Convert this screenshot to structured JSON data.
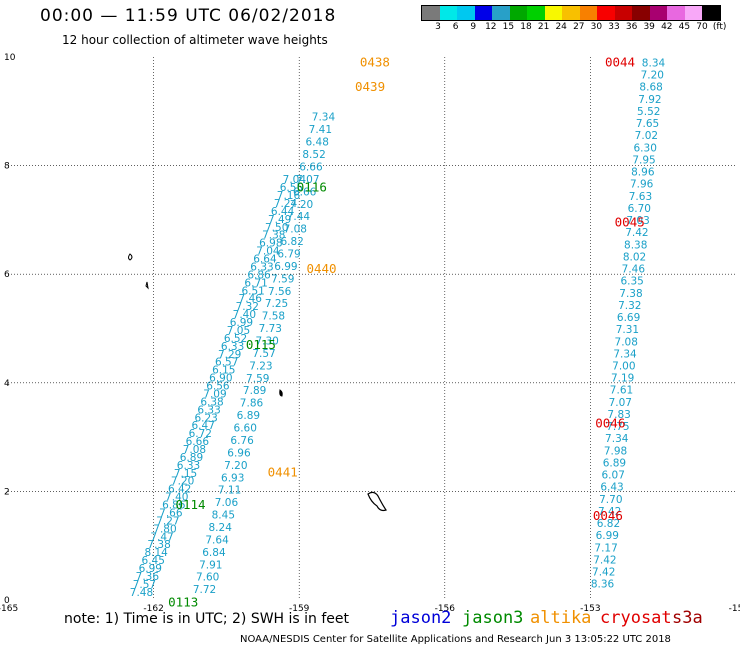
{
  "header": {
    "title": "00:00 — 11:59 UTC 06/02/2018",
    "subtitle": "12 hour collection of altimeter wave heights"
  },
  "scale": {
    "labels": [
      "3",
      "6",
      "9",
      "12",
      "15",
      "18",
      "21",
      "24",
      "27",
      "30",
      "33",
      "36",
      "39",
      "42",
      "45",
      "70",
      "(ft)"
    ],
    "colors": [
      "#7a7a7a",
      "#00e8e8",
      "#00c8f0",
      "#0000e8",
      "#28a0c8",
      "#00a800",
      "#00d000",
      "#f8f800",
      "#f8c000",
      "#f88000",
      "#f80000",
      "#c80000",
      "#880000",
      "#a80070",
      "#e868e0",
      "#f8a8f8",
      "#000000"
    ]
  },
  "axes": {
    "x_ticks": [
      "-165",
      "-162",
      "-159",
      "-156",
      "-153",
      "-15"
    ],
    "y_ticks": [
      "0",
      "2",
      "4",
      "6",
      "8",
      "10"
    ]
  },
  "chart_data": {
    "type": "scatter",
    "xlim": [
      -165,
      -150
    ],
    "ylim": [
      0,
      10
    ],
    "point_color": "#1aa0c8",
    "tracks": [
      {
        "id": "A",
        "x0": -162.25,
        "y0": 0.15,
        "x1": -159.1,
        "y1": 7.75,
        "values": [
          "7.48",
          "7.57",
          "7.36",
          "6.99",
          "6.45",
          "8.14",
          "7.38",
          "7.47",
          "7.80",
          "7.27",
          "7.66",
          "6.86",
          "7.40",
          "6.42",
          "7.20",
          "7.15",
          "6.33",
          "6.89",
          "7.08",
          "6.66",
          "6.72",
          "6.47",
          "6.23",
          "6.33",
          "6.38",
          "7.09",
          "6.56",
          "6.90",
          "6.15",
          "6.57",
          "7.29",
          "6.33",
          "6.52",
          "7.05",
          "6.99",
          "7.40",
          "7.32",
          "7.46",
          "6.51",
          "6.71",
          "6.86",
          "6.33",
          "6.64",
          "7.04",
          "6.98",
          "7.38",
          "7.50",
          "7.49",
          "6.44",
          "7.24",
          "7.16",
          "6.55",
          "7.04"
        ]
      },
      {
        "id": "B",
        "x0": -160.95,
        "y0": 0.2,
        "x1": -158.5,
        "y1": 8.9,
        "values": [
          "7.72",
          "7.60",
          "7.91",
          "6.84",
          "7.64",
          "8.24",
          "8.45",
          "7.06",
          "7.11",
          "6.93",
          "7.20",
          "6.96",
          "6.76",
          "6.60",
          "6.89",
          "7.86",
          "7.89",
          "7.59",
          "7.23",
          "7.57",
          "7.30",
          "7.73",
          "7.58",
          "7.25",
          "7.56",
          "7.59",
          "6.99",
          "6.79",
          "6.82",
          "7.08",
          "7.44",
          "7.20",
          "6.66",
          "7.07",
          "6.66",
          "8.52",
          "6.48",
          "7.41",
          "7.34"
        ]
      },
      {
        "id": "C",
        "x0": -152.75,
        "y0": 0.3,
        "x1": -151.7,
        "y1": 9.9,
        "values": [
          "8.36",
          "7.42",
          "7.42",
          "7.17",
          "6.99",
          "6.82",
          "7.42",
          "7.70",
          "6.43",
          "6.07",
          "6.89",
          "7.98",
          "7.34",
          "7.75",
          "7.83",
          "7.07",
          "7.61",
          "7.19",
          "7.00",
          "7.34",
          "7.08",
          "7.31",
          "6.69",
          "7.32",
          "7.38",
          "6.35",
          "7.46",
          "8.02",
          "8.38",
          "7.42",
          "7.03",
          "6.70",
          "7.63",
          "7.96",
          "8.96",
          "7.95",
          "6.30",
          "7.02",
          "7.65",
          "5.52",
          "7.92",
          "8.68",
          "7.20",
          "8.34"
        ]
      }
    ],
    "pass_labels": [
      {
        "text": "0438",
        "color": "#f09000",
        "x": -157.75,
        "y": 9.9
      },
      {
        "text": "0439",
        "color": "#f09000",
        "x": -157.85,
        "y": 9.45
      },
      {
        "text": "0116",
        "color": "#008a00",
        "x": -159.05,
        "y": 7.6
      },
      {
        "text": "0440",
        "color": "#f09000",
        "x": -158.85,
        "y": 6.1
      },
      {
        "text": "0115",
        "color": "#008a00",
        "x": -160.1,
        "y": 4.7
      },
      {
        "text": "0441",
        "color": "#f09000",
        "x": -159.65,
        "y": 2.35
      },
      {
        "text": "0114",
        "color": "#008a00",
        "x": -161.55,
        "y": 1.75
      },
      {
        "text": "0113",
        "color": "#008a00",
        "x": -161.7,
        "y": -0.05
      },
      {
        "text": "0044",
        "color": "#e00000",
        "x": -152.7,
        "y": 9.9
      },
      {
        "text": "0045",
        "color": "#e00000",
        "x": -152.5,
        "y": 6.95
      },
      {
        "text": "0046",
        "color": "#e00000",
        "x": -152.9,
        "y": 3.25
      },
      {
        "text": "0046",
        "color": "#e00000",
        "x": -152.95,
        "y": 1.55
      }
    ]
  },
  "footer": {
    "note": "note: 1) Time is in UTC; 2) SWH is in feet",
    "satellites": [
      {
        "name": "jason2",
        "color": "#0000d8"
      },
      {
        "name": "jason3",
        "color": "#008a00"
      },
      {
        "name": "altika",
        "color": "#f09000"
      },
      {
        "name": "cryosat",
        "color": "#e00000"
      },
      {
        "name": "s3a",
        "color": "#a00000"
      }
    ],
    "credit": "NOAA/NESDIS Center for Satellite Applications and Research    Jun  3 13:05:22 UTC 2018"
  }
}
